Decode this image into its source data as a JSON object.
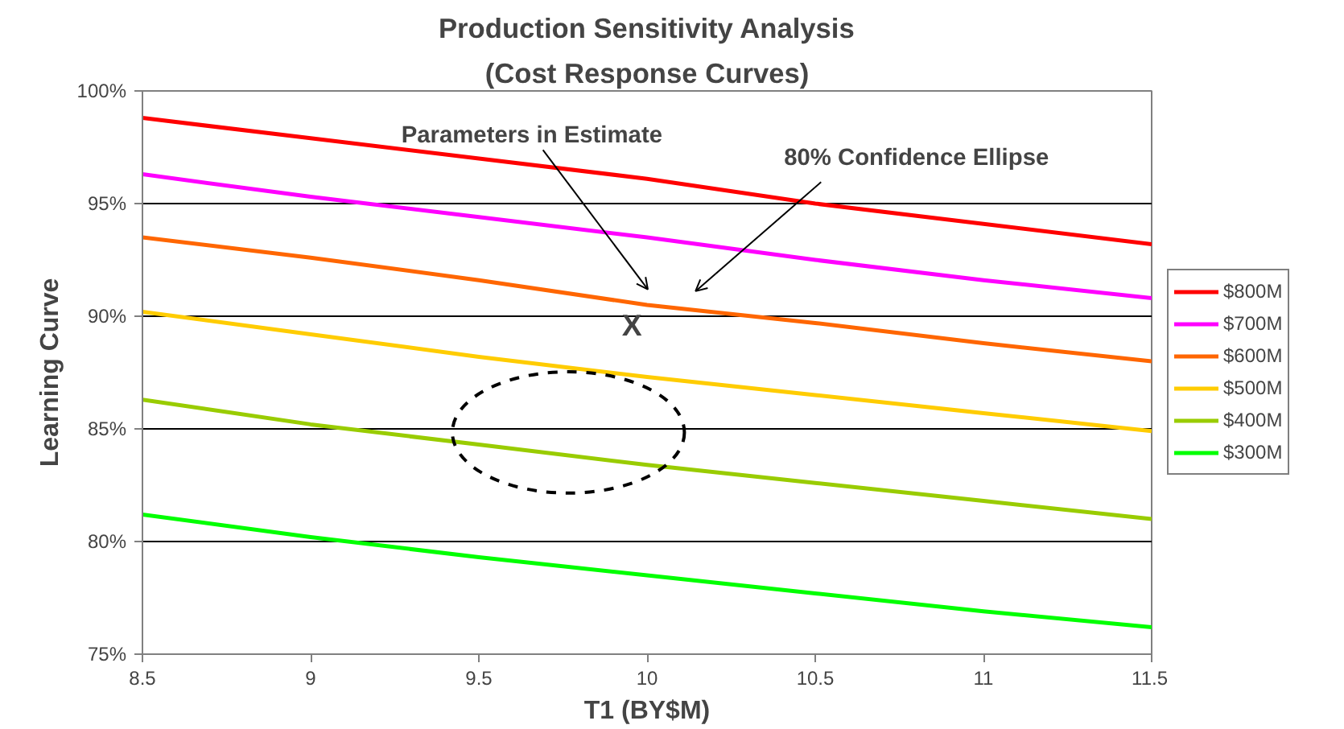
{
  "chart_data": {
    "type": "line",
    "title": "Production Sensitivity Analysis",
    "subtitle": "(Cost Response Curves)",
    "xlabel": "T1 (BY$M)",
    "ylabel": "Learning Curve",
    "x": [
      8.5,
      9,
      9.5,
      10,
      10.5,
      11,
      11.5
    ],
    "series": [
      {
        "name": "$800M",
        "color": "#ff0000",
        "values": [
          98.8,
          97.9,
          97.0,
          96.1,
          95.0,
          94.1,
          93.2
        ]
      },
      {
        "name": "$700M",
        "color": "#ff00ff",
        "values": [
          96.3,
          95.3,
          94.4,
          93.5,
          92.5,
          91.6,
          90.8
        ]
      },
      {
        "name": "$600M",
        "color": "#ff6600",
        "values": [
          93.5,
          92.6,
          91.6,
          90.5,
          89.7,
          88.8,
          88.0
        ]
      },
      {
        "name": "$500M",
        "color": "#ffcc00",
        "values": [
          90.2,
          89.2,
          88.2,
          87.3,
          86.5,
          85.7,
          84.9
        ]
      },
      {
        "name": "$400M",
        "color": "#99cc00",
        "values": [
          86.3,
          85.2,
          84.3,
          83.4,
          82.6,
          81.8,
          81.0
        ]
      },
      {
        "name": "$300M",
        "color": "#00ff00",
        "values": [
          81.2,
          80.2,
          79.3,
          78.5,
          77.7,
          76.9,
          76.2
        ]
      }
    ],
    "annotations": [
      "Parameters in Estimate",
      "80% Confidence Ellipse",
      "X"
    ],
    "xlim": [
      8.5,
      11.5
    ],
    "xticks": [
      8.5,
      9,
      9.5,
      10,
      10.5,
      11,
      11.5
    ],
    "ylim": [
      75,
      100
    ],
    "yticks": [
      {
        "value": 75,
        "label": "75%"
      },
      {
        "value": 80,
        "label": "80%"
      },
      {
        "value": 85,
        "label": "85%"
      },
      {
        "value": 90,
        "label": "90%"
      },
      {
        "value": 95,
        "label": "95%"
      },
      {
        "value": 100,
        "label": "100%"
      }
    ],
    "grid": "y",
    "legend": "right",
    "line_style": "solid",
    "marker": "none"
  }
}
